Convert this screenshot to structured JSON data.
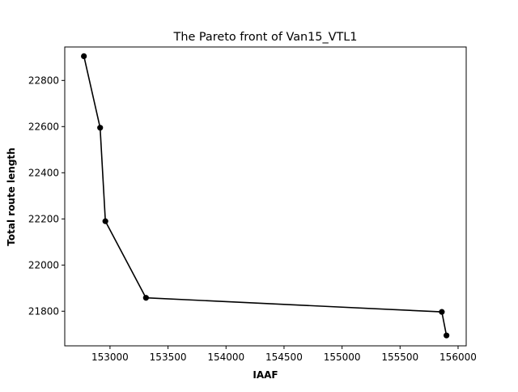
{
  "chart_data": {
    "type": "line",
    "title": "The Pareto front of Van15_VTL1",
    "xlabel": "IAAF",
    "ylabel": "Total route length",
    "xlim": [
      152610,
      156070
    ],
    "ylim": [
      21650,
      22945
    ],
    "xticks": [
      153000,
      153500,
      154000,
      154500,
      155000,
      155500,
      156000
    ],
    "yticks": [
      21800,
      22000,
      22200,
      22400,
      22600,
      22800
    ],
    "grid": false,
    "legend": "none",
    "series": [
      {
        "color": "#000000",
        "marker": "circle",
        "points": [
          {
            "x": 152775,
            "y": 22905
          },
          {
            "x": 152915,
            "y": 22595
          },
          {
            "x": 152960,
            "y": 22190
          },
          {
            "x": 153310,
            "y": 21858
          },
          {
            "x": 155860,
            "y": 21797
          },
          {
            "x": 155900,
            "y": 21695
          }
        ]
      }
    ]
  }
}
